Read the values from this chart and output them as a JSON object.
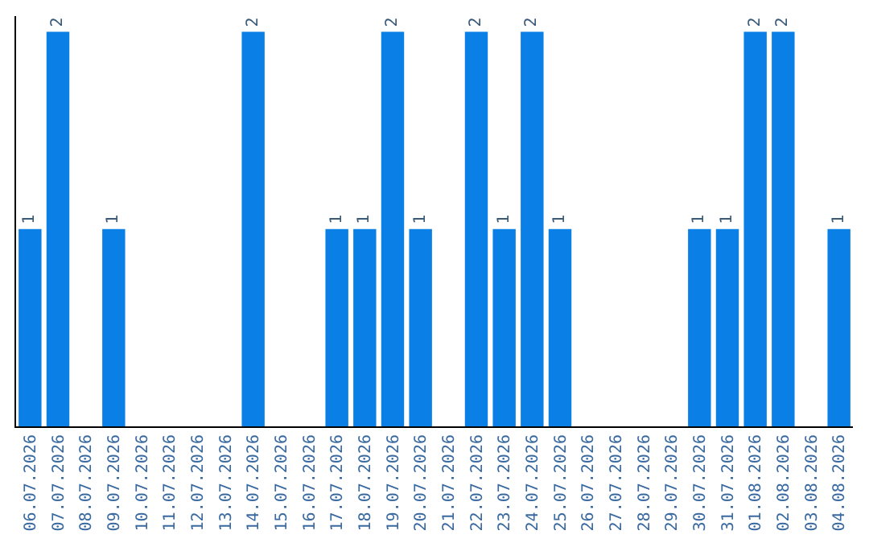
{
  "chart_data": {
    "type": "bar",
    "categories": [
      "06.07.2026",
      "07.07.2026",
      "08.07.2026",
      "09.07.2026",
      "10.07.2026",
      "11.07.2026",
      "12.07.2026",
      "13.07.2026",
      "14.07.2026",
      "15.07.2026",
      "16.07.2026",
      "17.07.2026",
      "18.07.2026",
      "19.07.2026",
      "20.07.2026",
      "21.07.2026",
      "22.07.2026",
      "23.07.2026",
      "24.07.2026",
      "25.07.2026",
      "26.07.2026",
      "27.07.2026",
      "28.07.2026",
      "29.07.2026",
      "30.07.2026",
      "31.07.2026",
      "01.08.2026",
      "02.08.2026",
      "03.08.2026",
      "04.08.2026"
    ],
    "values": [
      1,
      2,
      0,
      1,
      0,
      0,
      0,
      0,
      2,
      0,
      0,
      1,
      1,
      2,
      1,
      0,
      2,
      1,
      2,
      1,
      0,
      0,
      0,
      0,
      1,
      1,
      2,
      2,
      0,
      1
    ],
    "value_labels": [
      "1",
      "2",
      null,
      "1",
      null,
      null,
      null,
      null,
      "2",
      null,
      null,
      "1",
      "1",
      "2",
      "1",
      null,
      "2",
      "1",
      "2",
      "1",
      null,
      null,
      null,
      null,
      "1",
      "1",
      "2",
      "2",
      null,
      "1"
    ],
    "color": "#0a7fe6",
    "ylim": [
      0,
      2.08
    ],
    "tick_labels": "x",
    "legend": false
  }
}
